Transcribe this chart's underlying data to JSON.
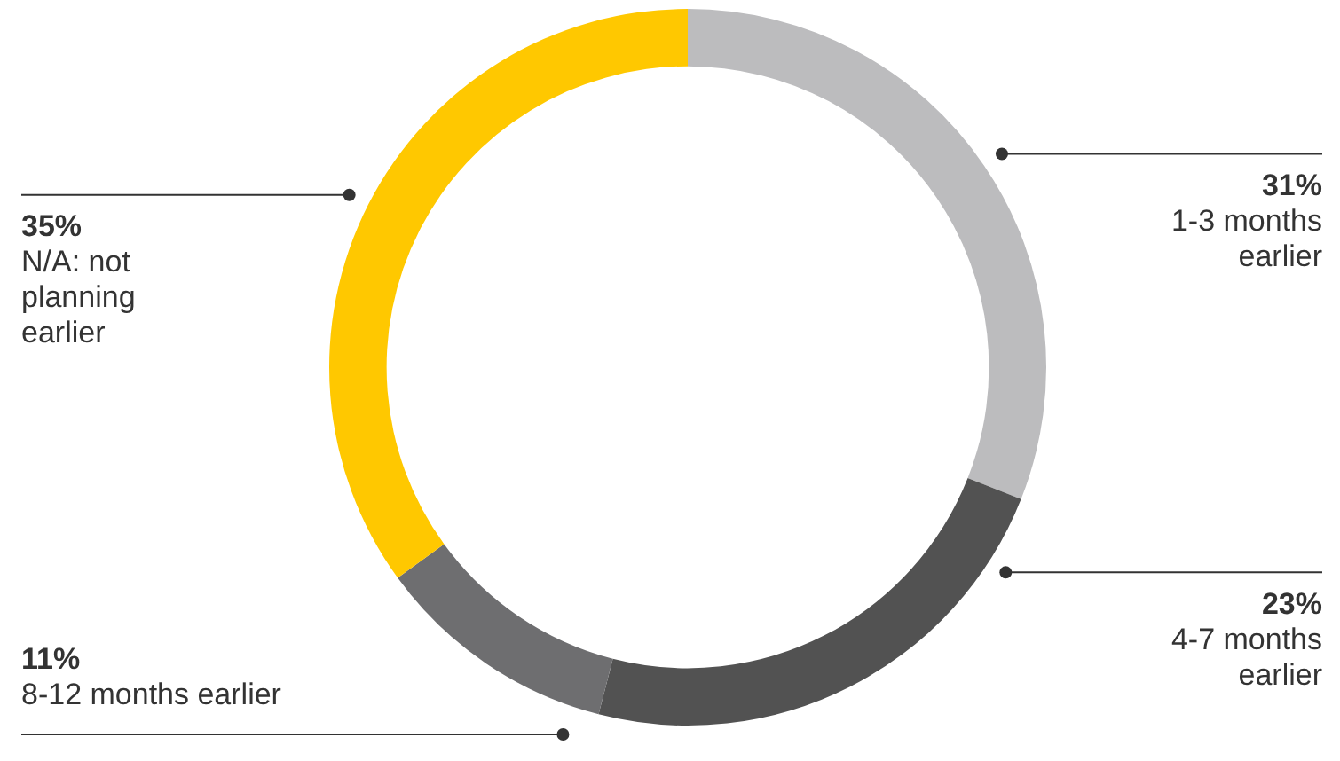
{
  "chart_data": {
    "type": "donut",
    "categories": [
      "1-3 months earlier",
      "4-7 months earlier",
      "8-12 months earlier",
      "N/A: not planning earlier"
    ],
    "values": [
      31,
      23,
      11,
      35
    ],
    "value_labels": [
      "31%",
      "23%",
      "11%",
      "35%"
    ],
    "colors": [
      "#bcbcbe",
      "#525252",
      "#6e6e70",
      "#ffc800"
    ],
    "legend": false
  }
}
